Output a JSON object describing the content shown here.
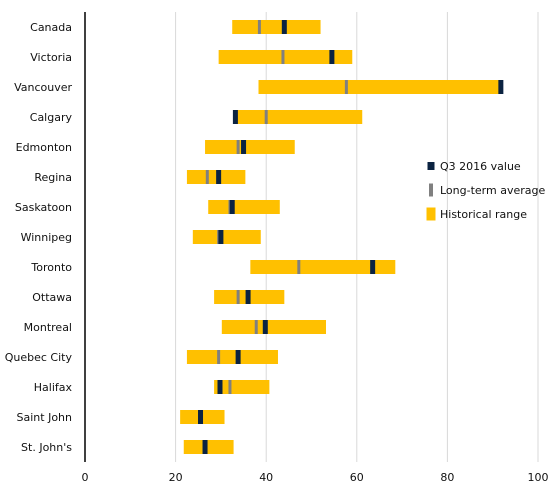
{
  "chart_data": {
    "type": "bar",
    "orientation": "horizontal",
    "title": "",
    "xlabel": "",
    "ylabel": "",
    "xlim": [
      0,
      100
    ],
    "x_ticks": [
      "0",
      "20",
      "40",
      "60",
      "80",
      "100"
    ],
    "grid": "vertical",
    "legend_position": "right",
    "categories": [
      "Canada",
      "Victoria",
      "Vancouver",
      "Calgary",
      "Edmonton",
      "Regina",
      "Saskatoon",
      "Winnipeg",
      "Toronto",
      "Ottawa",
      "Montreal",
      "Quebec City",
      "Halifax",
      "Saint John",
      "St. John's"
    ],
    "series": [
      {
        "name": "Historical range",
        "color": "#FFC000",
        "mark": "range-bar",
        "min": [
          32.5,
          29.5,
          38.3,
          33.2,
          26.5,
          22.5,
          27.2,
          23.8,
          36.5,
          28.5,
          30.2,
          22.5,
          28.5,
          21.0,
          21.8
        ],
        "max": [
          52.0,
          59.0,
          91.5,
          61.2,
          46.3,
          35.4,
          43.0,
          38.8,
          68.5,
          44.0,
          53.2,
          42.6,
          40.7,
          30.8,
          32.8
        ]
      },
      {
        "name": "Long-term average",
        "color": "#808080",
        "mark": "thin-marker",
        "values": [
          38.5,
          43.7,
          57.7,
          40.0,
          33.8,
          27.0,
          32.0,
          29.5,
          47.2,
          33.8,
          37.8,
          29.5,
          32.0,
          25.3,
          26.3
        ]
      },
      {
        "name": "Q3 2016 value",
        "color": "#0B2341",
        "mark": "thick-marker",
        "values": [
          44.0,
          54.5,
          91.8,
          33.2,
          35.0,
          29.5,
          32.5,
          30.0,
          63.5,
          36.0,
          39.8,
          33.8,
          29.8,
          25.5,
          26.5
        ]
      }
    ]
  }
}
